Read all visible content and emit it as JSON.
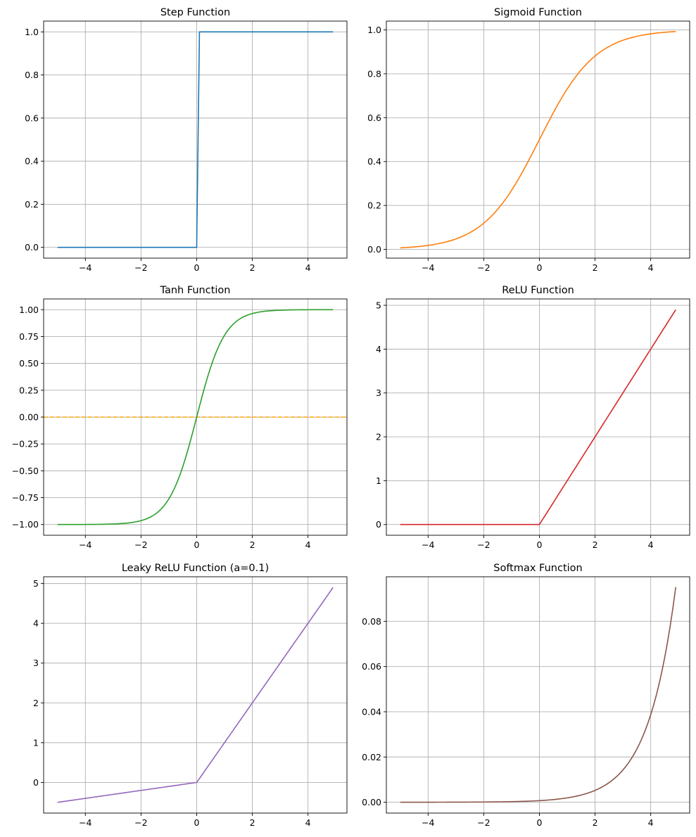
{
  "chart_data": [
    {
      "type": "line",
      "title": "Step Function",
      "xlim": [
        -5.5,
        5.4
      ],
      "ylim": [
        -0.05,
        1.05
      ],
      "xticks": [
        -4,
        -2,
        0,
        2,
        4
      ],
      "xtick_labels": [
        "−4",
        "−2",
        "0",
        "2",
        "4"
      ],
      "yticks": [
        0.0,
        0.2,
        0.4,
        0.6,
        0.8,
        1.0
      ],
      "ytick_labels": [
        "0.0",
        "0.2",
        "0.4",
        "0.6",
        "0.8",
        "1.0"
      ],
      "grid": true,
      "series": [
        {
          "name": "step",
          "color": "#1f77b4",
          "func": "step",
          "x_range": [
            -5,
            4.9
          ],
          "samples": 100
        }
      ]
    },
    {
      "type": "line",
      "title": "Sigmoid Function",
      "xlim": [
        -5.5,
        5.4
      ],
      "ylim": [
        -0.04,
        1.04
      ],
      "xticks": [
        -4,
        -2,
        0,
        2,
        4
      ],
      "xtick_labels": [
        "−4",
        "−2",
        "0",
        "2",
        "4"
      ],
      "yticks": [
        0.0,
        0.2,
        0.4,
        0.6,
        0.8,
        1.0
      ],
      "ytick_labels": [
        "0.0",
        "0.2",
        "0.4",
        "0.6",
        "0.8",
        "1.0"
      ],
      "grid": true,
      "series": [
        {
          "name": "sigmoid",
          "color": "#ff7f0e",
          "func": "sigmoid",
          "x_range": [
            -5,
            4.9
          ],
          "samples": 100
        }
      ]
    },
    {
      "type": "line",
      "title": "Tanh Function",
      "xlim": [
        -5.5,
        5.4
      ],
      "ylim": [
        -1.1,
        1.1
      ],
      "xticks": [
        -4,
        -2,
        0,
        2,
        4
      ],
      "xtick_labels": [
        "−4",
        "−2",
        "0",
        "2",
        "4"
      ],
      "yticks": [
        -1.0,
        -0.75,
        -0.5,
        -0.25,
        0.0,
        0.25,
        0.5,
        0.75,
        1.0
      ],
      "ytick_labels": [
        "−1.00",
        "−0.75",
        "−0.50",
        "−0.25",
        "0.00",
        "0.25",
        "0.50",
        "0.75",
        "1.00"
      ],
      "grid": true,
      "series": [
        {
          "name": "tanh",
          "color": "#2ca02c",
          "func": "tanh",
          "x_range": [
            -5,
            4.9
          ],
          "samples": 100
        }
      ],
      "reference_lines": [
        {
          "orientation": "horizontal",
          "y": 0,
          "color": "#ffa500",
          "style": "dashed"
        }
      ]
    },
    {
      "type": "line",
      "title": "ReLU Function",
      "xlim": [
        -5.5,
        5.4
      ],
      "ylim": [
        -0.245,
        5.145
      ],
      "xticks": [
        -4,
        -2,
        0,
        2,
        4
      ],
      "xtick_labels": [
        "−4",
        "−2",
        "0",
        "2",
        "4"
      ],
      "yticks": [
        0,
        1,
        2,
        3,
        4,
        5
      ],
      "ytick_labels": [
        "0",
        "1",
        "2",
        "3",
        "4",
        "5"
      ],
      "grid": true,
      "series": [
        {
          "name": "relu",
          "color": "#d62728",
          "func": "relu",
          "x_range": [
            -5,
            4.9
          ],
          "samples": 100
        }
      ]
    },
    {
      "type": "line",
      "title": "Leaky ReLU Function (a=0.1)",
      "xlim": [
        -5.5,
        5.4
      ],
      "ylim": [
        -0.77,
        5.17
      ],
      "xticks": [
        -4,
        -2,
        0,
        2,
        4
      ],
      "xtick_labels": [
        "−4",
        "−2",
        "0",
        "2",
        "4"
      ],
      "yticks": [
        0,
        1,
        2,
        3,
        4,
        5
      ],
      "ytick_labels": [
        "0",
        "1",
        "2",
        "3",
        "4",
        "5"
      ],
      "grid": true,
      "series": [
        {
          "name": "leaky_relu",
          "color": "#9467bd",
          "func": "leaky_relu",
          "alpha": 0.1,
          "x_range": [
            -5,
            4.9
          ],
          "samples": 100
        }
      ]
    },
    {
      "type": "line",
      "title": "Softmax Function",
      "xlim": [
        -5.5,
        5.4
      ],
      "ylim": [
        -0.0048,
        0.0997
      ],
      "xticks": [
        -4,
        -2,
        0,
        2,
        4
      ],
      "xtick_labels": [
        "−4",
        "−2",
        "0",
        "2",
        "4"
      ],
      "yticks": [
        0.0,
        0.02,
        0.04,
        0.06,
        0.08
      ],
      "ytick_labels": [
        "0.00",
        "0.02",
        "0.04",
        "0.06",
        "0.08"
      ],
      "grid": true,
      "series": [
        {
          "name": "softmax",
          "color": "#8c564b",
          "func": "softmax",
          "x_range": [
            -5,
            4.9
          ],
          "samples": 100
        }
      ]
    }
  ]
}
